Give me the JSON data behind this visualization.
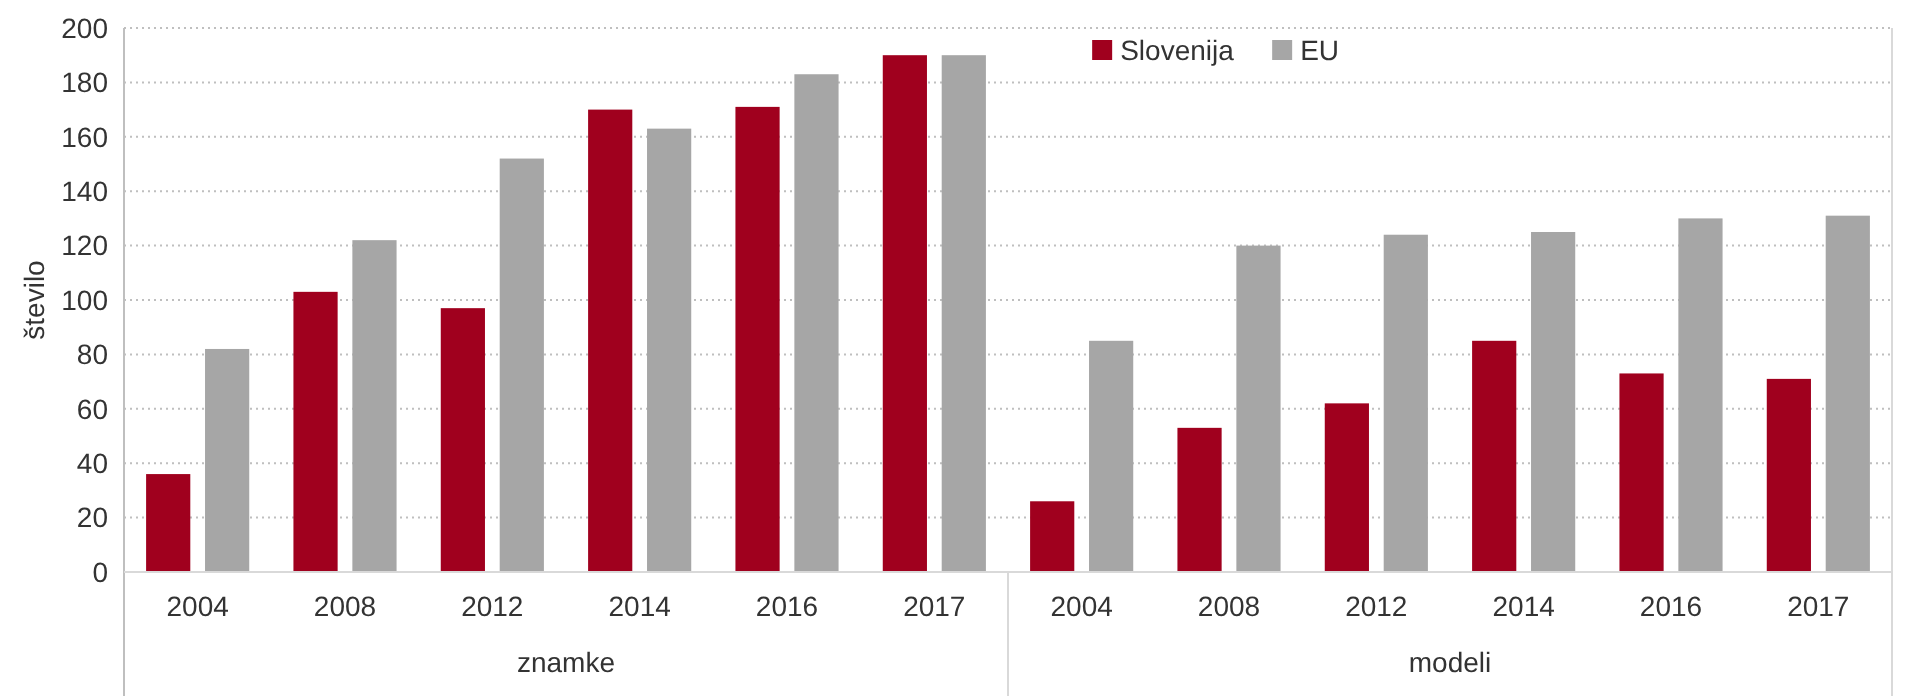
{
  "chart_data": {
    "type": "bar",
    "ylabel": "število",
    "categories": [
      "2004",
      "2008",
      "2012",
      "2014",
      "2016",
      "2017",
      "2004",
      "2008",
      "2012",
      "2014",
      "2016",
      "2017"
    ],
    "series": [
      {
        "name": "Slovenija",
        "color": "#a0001e",
        "values": [
          36,
          103,
          97,
          170,
          171,
          190,
          26,
          53,
          62,
          85,
          73,
          71
        ]
      },
      {
        "name": "EU",
        "color": "#a6a6a6",
        "values": [
          82,
          122,
          152,
          163,
          183,
          190,
          85,
          120,
          124,
          125,
          130,
          131
        ]
      }
    ],
    "ylim": [
      0,
      200
    ],
    "yticks": [
      0,
      20,
      40,
      60,
      80,
      100,
      120,
      140,
      160,
      180,
      200
    ],
    "grid": "y",
    "legend": "top",
    "annotations": [
      "znamke",
      "modeli"
    ]
  }
}
